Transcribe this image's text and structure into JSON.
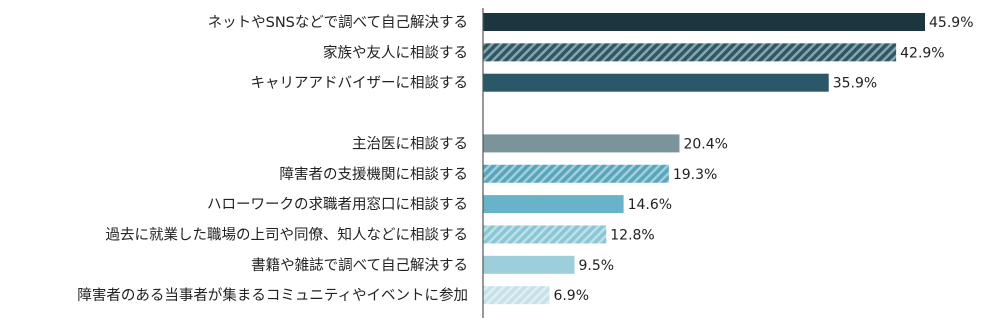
{
  "chart_data": {
    "type": "bar",
    "orientation": "horizontal",
    "categories": [
      "ネットやSNSなどで調べて自己解決する",
      "家族や友人に相談する",
      "キャリアアドバイザーに相談する",
      null,
      "主治医に相談する",
      "障害者の支援機関に相談する",
      "ハローワークの求職者用窓口に相談する",
      "過去に就業した職場の上司や同僚、知人などに相談する",
      "書籍や雑誌で調べて自己解決する",
      "障害者のある当事者が集まるコミュニティやイベントに参加"
    ],
    "values": [
      45.9,
      42.9,
      35.9,
      null,
      20.4,
      19.3,
      14.6,
      12.8,
      9.5,
      6.9
    ],
    "value_labels": [
      "45.9%",
      "42.9%",
      "35.9%",
      null,
      "20.4%",
      "19.3%",
      "14.6%",
      "12.8%",
      "9.5%",
      "6.9%"
    ],
    "colors": [
      "#1c3640",
      "#2b5a66",
      "#2a5868",
      null,
      "#7a949c",
      "#58a6bc",
      "#68b3c7",
      "#8ac6d5",
      "#9ccfdb",
      "#c6e1e9"
    ],
    "hatched": [
      false,
      true,
      false,
      null,
      false,
      true,
      false,
      true,
      false,
      true
    ]
  }
}
